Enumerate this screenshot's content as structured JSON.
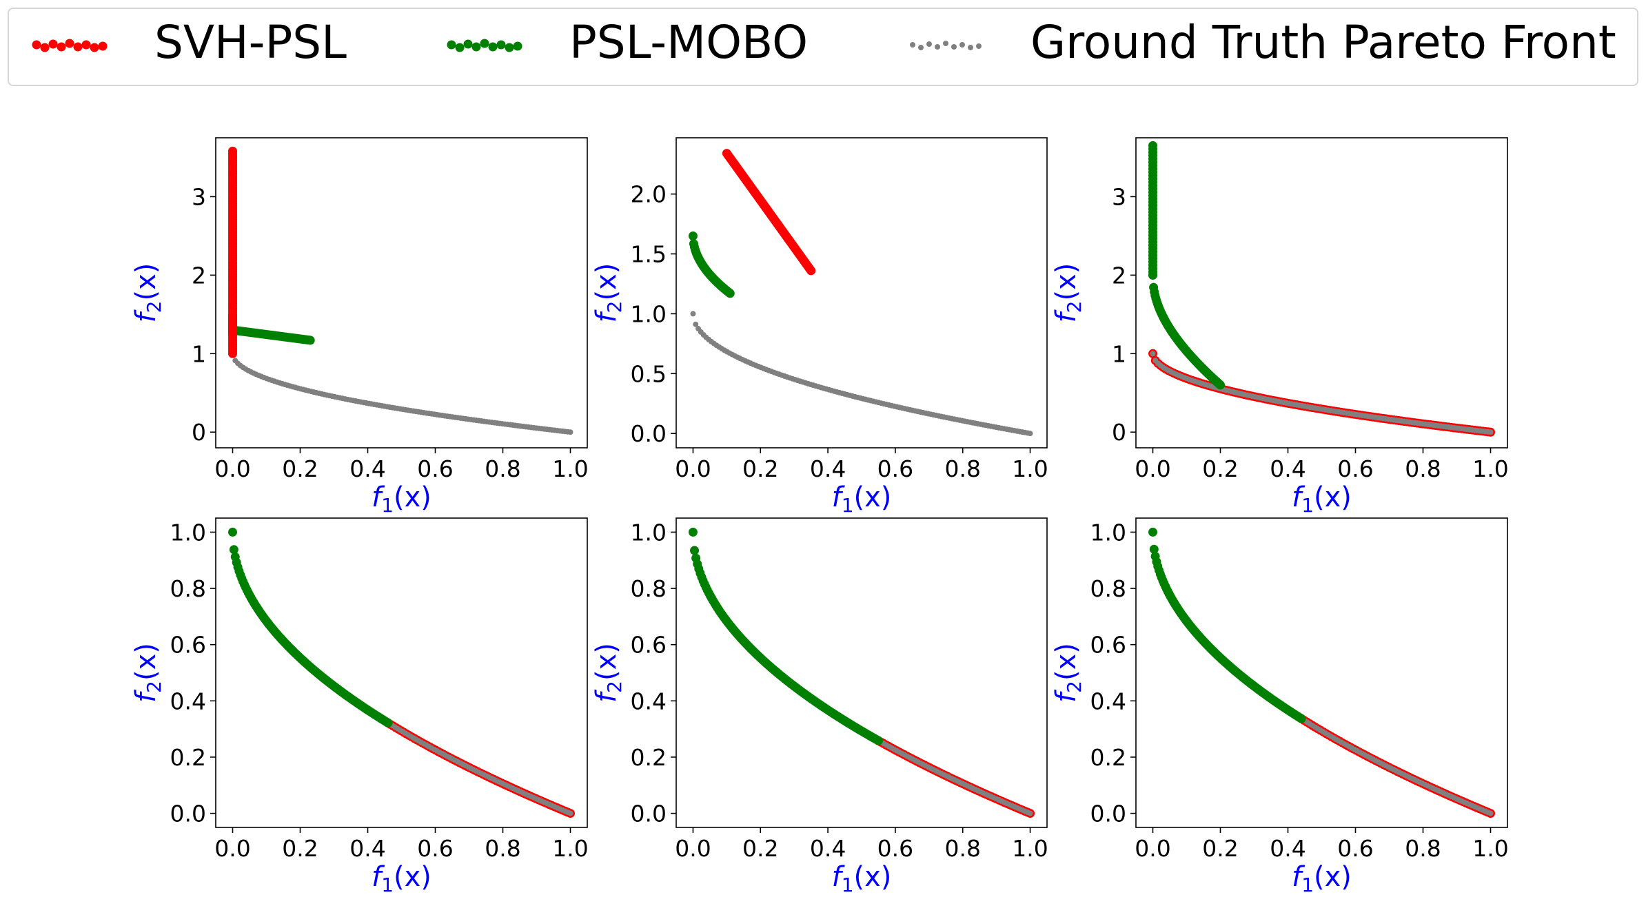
{
  "legend": {
    "entries": [
      {
        "label": "SVH-PSL",
        "color": "#ff0000"
      },
      {
        "label": "PSL-MOBO",
        "color": "#008000"
      },
      {
        "label": "Ground Truth Pareto Front",
        "color": "#808080"
      }
    ]
  },
  "chart_data": [
    {
      "type": "scatter",
      "xlabel": "f1(x)",
      "ylabel": "f2(x)",
      "label_color": "#0000ff",
      "xlim": [
        -0.05,
        1.05
      ],
      "ylim": [
        -0.2,
        3.75
      ],
      "xticks": [
        0.0,
        0.2,
        0.4,
        0.6,
        0.8,
        1.0
      ],
      "yticks": [
        0,
        1,
        2,
        3
      ],
      "series": [
        {
          "name": "Ground Truth Pareto Front",
          "color": "#808080",
          "marker": "small",
          "gen": {
            "kind": "sqrt",
            "x0": 0.0,
            "x1": 1.0,
            "n": 130
          }
        },
        {
          "name": "PSL-MOBO",
          "color": "#008000",
          "marker": "large",
          "gen": {
            "kind": "vline",
            "x": 0.0,
            "y0": 1.25,
            "y1": 1.48,
            "n": 12
          }
        },
        {
          "name": "PSL-MOBO",
          "color": "#008000",
          "marker": "large",
          "gen": {
            "kind": "line",
            "x0": 0.0,
            "y0": 1.3,
            "x1": 0.23,
            "y1": 1.17,
            "n": 60
          }
        },
        {
          "name": "SVH-PSL",
          "color": "#ff0000",
          "marker": "large",
          "gen": {
            "kind": "vline",
            "x": 0.0,
            "y0": 1.0,
            "y1": 3.58,
            "n": 90
          }
        }
      ]
    },
    {
      "type": "scatter",
      "xlabel": "f1(x)",
      "ylabel": "f2(x)",
      "label_color": "#0000ff",
      "xlim": [
        -0.05,
        1.05
      ],
      "ylim": [
        -0.12,
        2.47
      ],
      "xticks": [
        0.0,
        0.2,
        0.4,
        0.6,
        0.8,
        1.0
      ],
      "yticks": [
        0.0,
        0.5,
        1.0,
        1.5,
        2.0
      ],
      "series": [
        {
          "name": "Ground Truth Pareto Front",
          "color": "#808080",
          "marker": "small",
          "gen": {
            "kind": "sqrt",
            "x0": 0.0,
            "x1": 1.0,
            "n": 130
          }
        },
        {
          "name": "PSL-MOBO",
          "color": "#008000",
          "marker": "large",
          "gen": {
            "kind": "curve",
            "x0": 0.0,
            "x1": 0.11,
            "ya": 1.65,
            "yb": 1.17,
            "n": 55
          }
        },
        {
          "name": "SVH-PSL",
          "color": "#ff0000",
          "marker": "large",
          "gen": {
            "kind": "line",
            "x0": 0.1,
            "y0": 2.34,
            "x1": 0.35,
            "y1": 1.36,
            "n": 90
          }
        }
      ]
    },
    {
      "type": "scatter",
      "xlabel": "f1(x)",
      "ylabel": "f2(x)",
      "label_color": "#0000ff",
      "xlim": [
        -0.05,
        1.05
      ],
      "ylim": [
        -0.2,
        3.75
      ],
      "xticks": [
        0.0,
        0.2,
        0.4,
        0.6,
        0.8,
        1.0
      ],
      "yticks": [
        0,
        1,
        2,
        3
      ],
      "series": [
        {
          "name": "SVH-PSL",
          "color": "#ff0000",
          "marker": "large",
          "gen": {
            "kind": "sqrt",
            "x0": 0.0,
            "x1": 1.0,
            "n": 130
          }
        },
        {
          "name": "Ground Truth Pareto Front",
          "color": "#808080",
          "marker": "small",
          "gen": {
            "kind": "sqrt",
            "x0": 0.0,
            "x1": 1.0,
            "n": 130
          }
        },
        {
          "name": "PSL-MOBO",
          "color": "#008000",
          "marker": "large",
          "gen": {
            "kind": "vline",
            "x": 0.0,
            "y0": 2.0,
            "y1": 3.65,
            "n": 40
          }
        },
        {
          "name": "PSL-MOBO",
          "color": "#008000",
          "marker": "large",
          "gen": {
            "kind": "hyper",
            "x0": 0.0,
            "x1": 0.2,
            "n": 90
          }
        }
      ]
    },
    {
      "type": "scatter",
      "xlabel": "f1(x)",
      "ylabel": "f2(x)",
      "label_color": "#0000ff",
      "xlim": [
        -0.05,
        1.05
      ],
      "ylim": [
        -0.05,
        1.05
      ],
      "xticks": [
        0.0,
        0.2,
        0.4,
        0.6,
        0.8,
        1.0
      ],
      "yticks": [
        0.0,
        0.2,
        0.4,
        0.6,
        0.8,
        1.0
      ],
      "series": [
        {
          "name": "SVH-PSL",
          "color": "#ff0000",
          "marker": "large",
          "gen": {
            "kind": "sqrt",
            "x0": 0.46,
            "x1": 1.0,
            "n": 70
          }
        },
        {
          "name": "Ground Truth Pareto Front",
          "color": "#808080",
          "marker": "small",
          "gen": {
            "kind": "sqrt",
            "x0": 0.0,
            "x1": 1.0,
            "n": 130
          }
        },
        {
          "name": "PSL-MOBO",
          "color": "#008000",
          "marker": "large",
          "gen": {
            "kind": "sqrt",
            "x0": 0.0,
            "x1": 0.46,
            "n": 120
          }
        }
      ]
    },
    {
      "type": "scatter",
      "xlabel": "f1(x)",
      "ylabel": "f2(x)",
      "label_color": "#0000ff",
      "xlim": [
        -0.05,
        1.05
      ],
      "ylim": [
        -0.05,
        1.05
      ],
      "xticks": [
        0.0,
        0.2,
        0.4,
        0.6,
        0.8,
        1.0
      ],
      "yticks": [
        0.0,
        0.2,
        0.4,
        0.6,
        0.8,
        1.0
      ],
      "series": [
        {
          "name": "SVH-PSL",
          "color": "#ff0000",
          "marker": "large",
          "gen": {
            "kind": "sqrt",
            "x0": 0.55,
            "x1": 1.0,
            "n": 60
          }
        },
        {
          "name": "Ground Truth Pareto Front",
          "color": "#808080",
          "marker": "small",
          "gen": {
            "kind": "sqrt",
            "x0": 0.0,
            "x1": 1.0,
            "n": 130
          }
        },
        {
          "name": "PSL-MOBO",
          "color": "#008000",
          "marker": "large",
          "gen": {
            "kind": "sqrt",
            "x0": 0.0,
            "x1": 0.55,
            "n": 130
          }
        }
      ]
    },
    {
      "type": "scatter",
      "xlabel": "f1(x)",
      "ylabel": "f2(x)",
      "label_color": "#0000ff",
      "xlim": [
        -0.05,
        1.05
      ],
      "ylim": [
        -0.05,
        1.05
      ],
      "xticks": [
        0.0,
        0.2,
        0.4,
        0.6,
        0.8,
        1.0
      ],
      "yticks": [
        0.0,
        0.2,
        0.4,
        0.6,
        0.8,
        1.0
      ],
      "series": [
        {
          "name": "SVH-PSL",
          "color": "#ff0000",
          "marker": "large",
          "gen": {
            "kind": "sqrt",
            "x0": 0.44,
            "x1": 1.0,
            "n": 70
          }
        },
        {
          "name": "Ground Truth Pareto Front",
          "color": "#808080",
          "marker": "small",
          "gen": {
            "kind": "sqrt",
            "x0": 0.0,
            "x1": 1.0,
            "n": 130
          }
        },
        {
          "name": "PSL-MOBO",
          "color": "#008000",
          "marker": "large",
          "gen": {
            "kind": "sqrt",
            "x0": 0.0,
            "x1": 0.44,
            "n": 120
          }
        }
      ]
    }
  ]
}
